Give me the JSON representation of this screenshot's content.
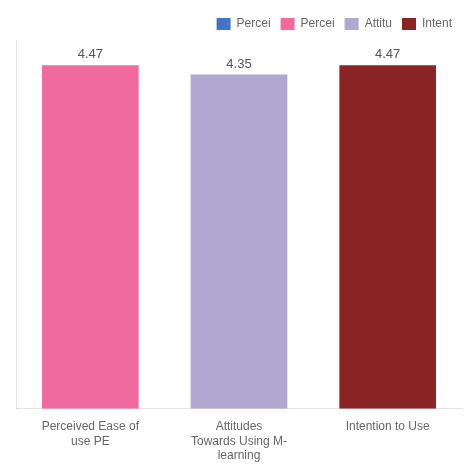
{
  "chart_data": {
    "type": "bar",
    "categories": [
      "Perceived Ease of\nuse PE",
      "Attitudes\nTowards Using M-\nlearning",
      "Intention to Use"
    ],
    "series": [
      {
        "name": "Percei",
        "color": "#4472c4",
        "values": [
          null,
          null,
          null
        ]
      },
      {
        "name": "Percei",
        "color": "#f06aa0",
        "values": [
          4.47,
          null,
          null
        ]
      },
      {
        "name": "Attitu",
        "color": "#b0a8d0",
        "values": [
          null,
          4.35,
          null
        ]
      },
      {
        "name": "Intent",
        "color": "#8b2525",
        "values": [
          null,
          null,
          4.47
        ]
      }
    ],
    "ylim": [
      0,
      4.8
    ],
    "grid": false,
    "legend": "upper right",
    "data_labels": true,
    "tick_labels": "x"
  }
}
